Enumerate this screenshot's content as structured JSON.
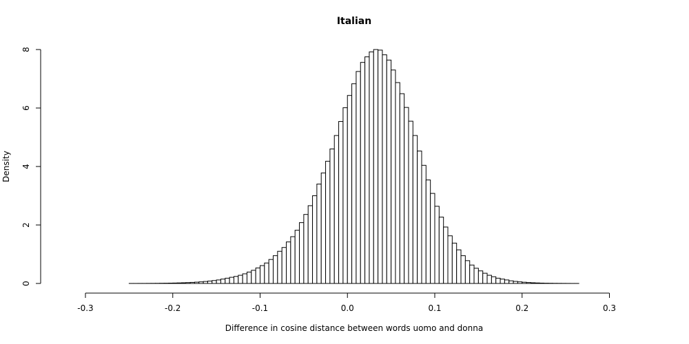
{
  "chart_data": {
    "type": "bar",
    "title": "Italian",
    "xlabel": "Difference in cosine distance between words uomo and donna",
    "ylabel": "Density",
    "xlim": [
      -0.325,
      0.34
    ],
    "ylim": [
      0,
      8
    ],
    "x_ticks": [
      "-0.3",
      "-0.2",
      "-0.1",
      "0.0",
      "0.1",
      "0.2",
      "0.3"
    ],
    "y_ticks": [
      "0",
      "2",
      "4",
      "6",
      "8"
    ],
    "bin_width": 0.005,
    "bin_start": -0.325,
    "values": [
      0.0,
      0.0,
      0.0,
      0.0,
      0.0,
      0.0,
      0.0,
      0.0,
      0.0,
      0.0,
      0.0,
      0.0,
      0.0,
      0.0,
      0.0,
      0.001,
      0.001,
      0.002,
      0.002,
      0.003,
      0.004,
      0.005,
      0.007,
      0.009,
      0.012,
      0.015,
      0.019,
      0.024,
      0.03,
      0.037,
      0.045,
      0.055,
      0.068,
      0.082,
      0.1,
      0.12,
      0.15,
      0.18,
      0.21,
      0.24,
      0.28,
      0.33,
      0.39,
      0.45,
      0.53,
      0.61,
      0.7,
      0.82,
      0.95,
      1.1,
      1.23,
      1.42,
      1.6,
      1.82,
      2.08,
      2.36,
      2.66,
      3.0,
      3.4,
      3.78,
      4.18,
      4.6,
      5.06,
      5.54,
      6.01,
      6.43,
      6.83,
      7.25,
      7.56,
      7.75,
      7.92,
      8.0,
      7.98,
      7.82,
      7.64,
      7.3,
      6.87,
      6.49,
      6.02,
      5.55,
      5.06,
      4.53,
      4.04,
      3.54,
      3.08,
      2.64,
      2.27,
      1.93,
      1.63,
      1.38,
      1.15,
      0.95,
      0.78,
      0.63,
      0.52,
      0.43,
      0.35,
      0.28,
      0.23,
      0.18,
      0.15,
      0.12,
      0.09,
      0.07,
      0.055,
      0.042,
      0.032,
      0.024,
      0.018,
      0.013,
      0.009,
      0.007,
      0.005,
      0.004,
      0.003,
      0.002,
      0.001,
      0.001,
      0.0,
      0.0,
      0.0,
      0.0,
      0.0,
      0.0,
      0.0,
      0.0,
      0.0,
      0.0,
      0.0,
      0.0,
      0.0,
      0.0,
      0.0
    ]
  }
}
